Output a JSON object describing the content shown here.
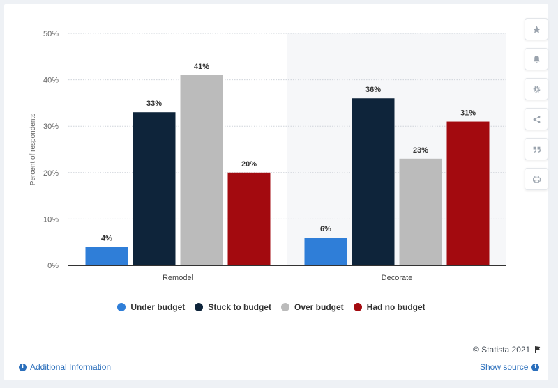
{
  "chart_data": {
    "type": "bar",
    "categories": [
      "Remodel",
      "Decorate"
    ],
    "series": [
      {
        "name": "Under budget",
        "values": [
          4,
          6
        ],
        "color": "#2f7ed8"
      },
      {
        "name": "Stuck to budget",
        "values": [
          33,
          36
        ],
        "color": "#0e243a"
      },
      {
        "name": "Over budget",
        "values": [
          41,
          23
        ],
        "color": "#bbbbbb"
      },
      {
        "name": "Had no budget",
        "values": [
          20,
          31
        ],
        "color": "#a30a0f"
      }
    ],
    "data_labels": [
      [
        "4%",
        "6%"
      ],
      [
        "33%",
        "36%"
      ],
      [
        "41%",
        "23%"
      ],
      [
        "20%",
        "31%"
      ]
    ],
    "yticks": [
      "0%",
      "10%",
      "20%",
      "30%",
      "40%",
      "50%"
    ],
    "ylim": [
      0,
      50
    ],
    "ylabel": "Percent of respondents",
    "xlabel": "",
    "title": "",
    "grid": true,
    "legend_position": "bottom",
    "highlight_category": "Decorate"
  },
  "tools": {
    "star": "star-icon",
    "bell": "bell-icon",
    "gear": "gear-icon",
    "share": "share-icon",
    "quote": "quote-icon",
    "print": "print-icon"
  },
  "footer": {
    "credit": "© Statista 2021",
    "additional_info": "Additional Information",
    "show_source": "Show source"
  }
}
